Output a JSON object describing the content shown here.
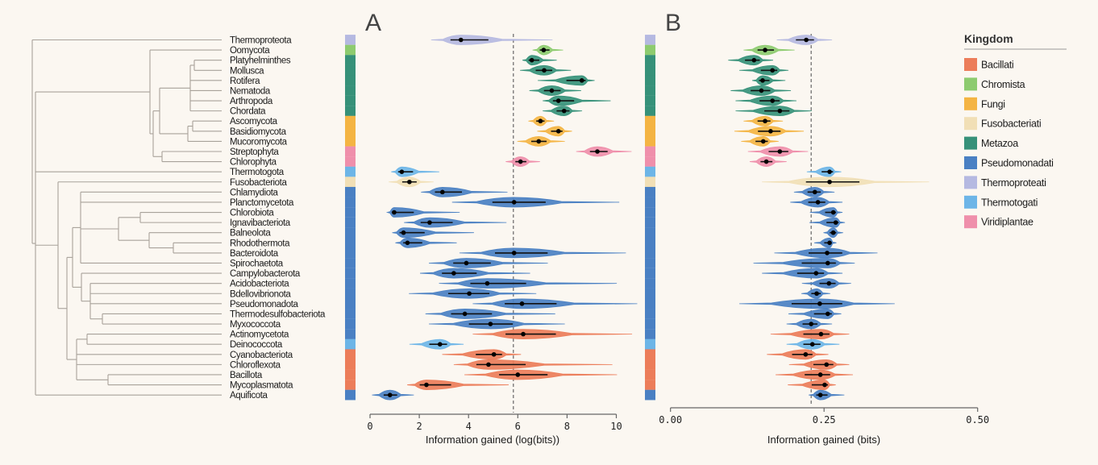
{
  "panels": {
    "a": "A",
    "b": "B"
  },
  "colors": {
    "background": "#FBF7F1",
    "Bacillati": "#EC7D5A",
    "Chromista": "#8DCB6F",
    "Fungi": "#F4B443",
    "Fusobacteriati": "#F1DFB6",
    "Metazoa": "#369179",
    "Pseudomonadati": "#4A80C3",
    "Thermoproteati": "#B5B9E1",
    "Thermotogati": "#6DB5E7",
    "Viridiplantae": "#EF8FAB"
  },
  "legend": {
    "title": "Kingdom",
    "items": [
      "Bacillati",
      "Chromista",
      "Fungi",
      "Fusobacteriati",
      "Metazoa",
      "Pseudomonadati",
      "Thermoproteati",
      "Thermotogati",
      "Viridiplantae"
    ]
  },
  "chart_data": [
    {
      "type": "violin",
      "panel": "A",
      "xlabel": "Information gained (log(bits))",
      "xlim": [
        0,
        10
      ],
      "xticks": [
        "0",
        "2",
        "4",
        "6",
        "8",
        "10"
      ],
      "reference_line": 5.82,
      "series_ref": "phyla.a"
    },
    {
      "type": "violin",
      "panel": "B",
      "xlabel": "Information gained (bits)",
      "xlim": [
        0,
        0.5
      ],
      "xticks": [
        "0.00",
        "0.25",
        "0.50"
      ],
      "reference_line": 0.229,
      "series_ref": "phyla.b"
    }
  ],
  "phyla": [
    {
      "name": "Thermoproteota",
      "kingdom": "Thermoproteati",
      "bar": "Thermoproteati",
      "a": [
        2.48,
        3.69,
        7.41
      ],
      "b": [
        0.173,
        0.221,
        0.263
      ]
    },
    {
      "name": "Oomycota",
      "kingdom": "Chromista",
      "bar": "Chromista",
      "a": [
        6.6,
        7.05,
        7.84
      ],
      "b": [
        0.119,
        0.154,
        0.202
      ]
    },
    {
      "name": "Platyhelminthes",
      "kingdom": "Metazoa",
      "bar": "Metazoa",
      "a": [
        6.19,
        6.57,
        7.58
      ],
      "b": [
        0.094,
        0.136,
        0.167
      ]
    },
    {
      "name": "Mollusca",
      "kingdom": "Metazoa",
      "bar": "Metazoa",
      "a": [
        6.09,
        7.07,
        8.16
      ],
      "b": [
        0.112,
        0.166,
        0.192
      ]
    },
    {
      "name": "Rotifera",
      "kingdom": "Metazoa",
      "bar": "Metazoa",
      "a": [
        6.81,
        8.6,
        9.12
      ],
      "b": [
        0.133,
        0.15,
        0.187
      ]
    },
    {
      "name": "Nematoda",
      "kingdom": "Metazoa",
      "bar": "Metazoa",
      "a": [
        6.47,
        7.38,
        8.57
      ],
      "b": [
        0.098,
        0.148,
        0.196
      ]
    },
    {
      "name": "Arthropoda",
      "kingdom": "Metazoa",
      "bar": "Metazoa",
      "a": [
        7.01,
        7.65,
        9.77
      ],
      "b": [
        0.106,
        0.166,
        0.205
      ]
    },
    {
      "name": "Chordata",
      "kingdom": "Metazoa",
      "bar": "Metazoa",
      "a": [
        7.01,
        7.88,
        8.61
      ],
      "b": [
        0.106,
        0.178,
        0.23
      ]
    },
    {
      "name": "Ascomycota",
      "kingdom": "Fungi",
      "bar": "Fungi",
      "a": [
        6.43,
        6.92,
        7.47
      ],
      "b": [
        0.119,
        0.154,
        0.183
      ]
    },
    {
      "name": "Basidiomycota",
      "kingdom": "Fungi",
      "bar": "Fungi",
      "a": [
        6.79,
        7.65,
        8.2
      ],
      "b": [
        0.104,
        0.163,
        0.217
      ]
    },
    {
      "name": "Mucoromycota",
      "kingdom": "Fungi",
      "bar": "Fungi",
      "a": [
        5.98,
        6.85,
        7.91
      ],
      "b": [
        0.115,
        0.151,
        0.176
      ]
    },
    {
      "name": "Streptophyta",
      "kingdom": "Viridiplantae",
      "bar": "Viridiplantae",
      "a": [
        8.37,
        9.23,
        10.62
      ],
      "b": [
        0.126,
        0.178,
        0.224
      ]
    },
    {
      "name": "Chlorophyta",
      "kingdom": "Viridiplantae",
      "bar": "Viridiplantae",
      "a": [
        5.51,
        6.11,
        6.9
      ],
      "b": [
        0.129,
        0.156,
        0.189
      ]
    },
    {
      "name": "Thermotogota",
      "kingdom": "Thermotogati",
      "bar": "Thermotogati",
      "a": [
        0.86,
        1.29,
        2.81
      ],
      "b": [
        0.222,
        0.259,
        0.278
      ]
    },
    {
      "name": "Fusobacteriota",
      "kingdom": "Fusobacteriati",
      "bar": "Fusobacteriati",
      "a": [
        0.76,
        1.6,
        2.58
      ],
      "b": [
        0.149,
        0.259,
        0.421
      ]
    },
    {
      "name": "Chlamydiota",
      "kingdom": "Pseudomonadati",
      "bar": "Pseudomonadati",
      "a": [
        2.07,
        2.94,
        5.58
      ],
      "b": [
        0.201,
        0.235,
        0.267
      ]
    },
    {
      "name": "Planctomycetota",
      "kingdom": "Pseudomonadati",
      "bar": "Pseudomonadati",
      "a": [
        3.33,
        5.85,
        10.12
      ],
      "b": [
        0.195,
        0.24,
        0.28
      ]
    },
    {
      "name": "Chlorobiota",
      "kingdom": "Pseudomonadati",
      "bar": "Pseudomonadati",
      "a": [
        0.7,
        0.98,
        3.64
      ],
      "b": [
        0.227,
        0.265,
        0.28
      ]
    },
    {
      "name": "Ignavibacteriota",
      "kingdom": "Pseudomonadati",
      "bar": "Pseudomonadati",
      "a": [
        1.38,
        2.42,
        5.54
      ],
      "b": [
        0.226,
        0.269,
        0.284
      ]
    },
    {
      "name": "Balneolota",
      "kingdom": "Pseudomonadati",
      "bar": "Pseudomonadati",
      "a": [
        0.9,
        1.36,
        4.22
      ],
      "b": [
        0.249,
        0.265,
        0.281
      ]
    },
    {
      "name": "Rhodothermota",
      "kingdom": "Pseudomonadati",
      "bar": "Pseudomonadati",
      "a": [
        1.03,
        1.52,
        3.52
      ],
      "b": [
        0.234,
        0.259,
        0.27
      ]
    },
    {
      "name": "Bacteroidota",
      "kingdom": "Pseudomonadati",
      "bar": "Pseudomonadati",
      "a": [
        3.63,
        5.85,
        10.39
      ],
      "b": [
        0.169,
        0.255,
        0.337
      ]
    },
    {
      "name": "Spirochaetota",
      "kingdom": "Pseudomonadati",
      "bar": "Pseudomonadati",
      "a": [
        2.39,
        3.91,
        7.22
      ],
      "b": [
        0.135,
        0.256,
        0.3
      ]
    },
    {
      "name": "Campylobacterota",
      "kingdom": "Pseudomonadati",
      "bar": "Pseudomonadati",
      "a": [
        2.03,
        3.4,
        6.5
      ],
      "b": [
        0.149,
        0.237,
        0.28
      ]
    },
    {
      "name": "Acidobacteriota",
      "kingdom": "Pseudomonadati",
      "bar": "Pseudomonadati",
      "a": [
        2.8,
        4.76,
        10.02
      ],
      "b": [
        0.214,
        0.258,
        0.294
      ]
    },
    {
      "name": "Bdellovibrionota",
      "kingdom": "Pseudomonadati",
      "bar": "Pseudomonadati",
      "a": [
        1.58,
        4.03,
        6.75
      ],
      "b": [
        0.213,
        0.238,
        0.26
      ]
    },
    {
      "name": "Pseudomonadota",
      "kingdom": "Pseudomonadati",
      "bar": "Pseudomonadati",
      "a": [
        4.17,
        6.17,
        10.85
      ],
      "b": [
        0.112,
        0.243,
        0.365
      ]
    },
    {
      "name": "Thermodesulfobacteriota",
      "kingdom": "Pseudomonadati",
      "bar": "Pseudomonadati",
      "a": [
        2.25,
        3.85,
        7.52
      ],
      "b": [
        0.192,
        0.256,
        0.278
      ]
    },
    {
      "name": "Myxococcota",
      "kingdom": "Pseudomonadati",
      "bar": "Pseudomonadati",
      "a": [
        2.39,
        4.89,
        7.91
      ],
      "b": [
        0.189,
        0.229,
        0.263
      ]
    },
    {
      "name": "Actinomycetota",
      "kingdom": "Bacillati",
      "bar": "Pseudomonadati",
      "a": [
        4.17,
        6.22,
        10.64
      ],
      "b": [
        0.163,
        0.245,
        0.291
      ]
    },
    {
      "name": "Deinococcota",
      "kingdom": "Thermotogati",
      "bar": "Thermotogati",
      "a": [
        1.6,
        2.84,
        3.8
      ],
      "b": [
        0.189,
        0.231,
        0.275
      ]
    },
    {
      "name": "Cyanobacteriota",
      "kingdom": "Bacillati",
      "bar": "Bacillati",
      "a": [
        2.93,
        5.03,
        6.13
      ],
      "b": [
        0.157,
        0.22,
        0.257
      ]
    },
    {
      "name": "Chloroflexota",
      "kingdom": "Bacillati",
      "bar": "Bacillati",
      "a": [
        3.4,
        4.81,
        9.84
      ],
      "b": [
        0.193,
        0.254,
        0.291
      ]
    },
    {
      "name": "Bacillota",
      "kingdom": "Bacillati",
      "bar": "Bacillati",
      "a": [
        3.83,
        6.0,
        10.03
      ],
      "b": [
        0.171,
        0.244,
        0.297
      ]
    },
    {
      "name": "Mycoplasmatota",
      "kingdom": "Bacillati",
      "bar": "Bacillati",
      "a": [
        1.51,
        2.29,
        5.63
      ],
      "b": [
        0.191,
        0.251,
        0.269
      ]
    },
    {
      "name": "Aquificota",
      "kingdom": "Pseudomonadati",
      "bar": "Pseudomonadati",
      "a": [
        0.08,
        0.81,
        1.78
      ],
      "b": [
        0.225,
        0.244,
        0.283
      ]
    }
  ]
}
